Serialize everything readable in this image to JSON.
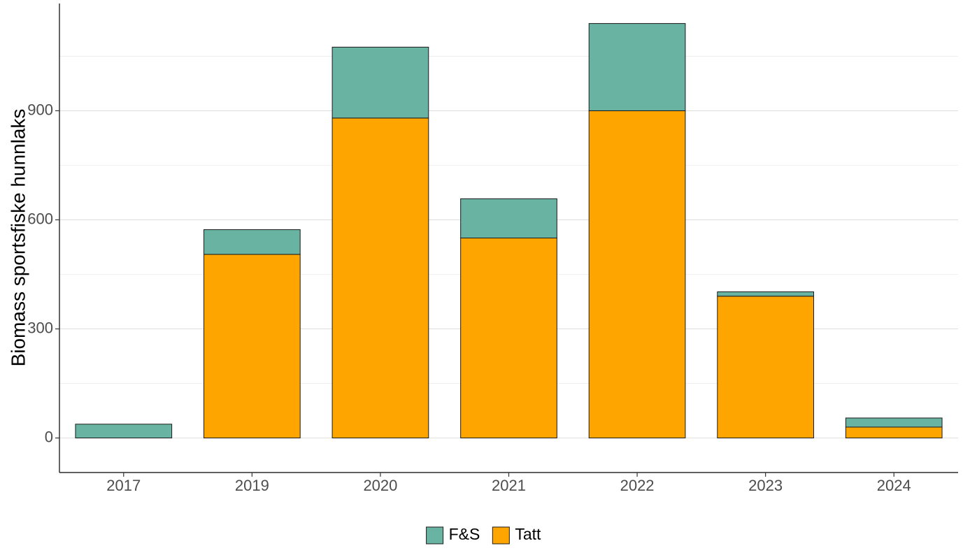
{
  "chart_data": {
    "type": "bar",
    "stacked": true,
    "categories": [
      "2017",
      "2019",
      "2020",
      "2021",
      "2022",
      "2023",
      "2024"
    ],
    "series": [
      {
        "name": "Tatt",
        "color": "#FFA500",
        "values": [
          0,
          505,
          880,
          550,
          900,
          390,
          30
        ]
      },
      {
        "name": "F&S",
        "color": "#69B3A2",
        "values": [
          38,
          68,
          195,
          108,
          240,
          12,
          25
        ]
      }
    ],
    "xlabel": "",
    "ylabel": "Biomass sportsfiske hunnlaks",
    "ylim": [
      -95,
      1195
    ],
    "yticks": [
      0,
      300,
      600,
      900
    ],
    "grid": true,
    "legend": {
      "position": "bottom",
      "entries": [
        {
          "label": "F&S",
          "color": "#69B3A2"
        },
        {
          "label": "Tatt",
          "color": "#FFA500"
        }
      ]
    }
  }
}
